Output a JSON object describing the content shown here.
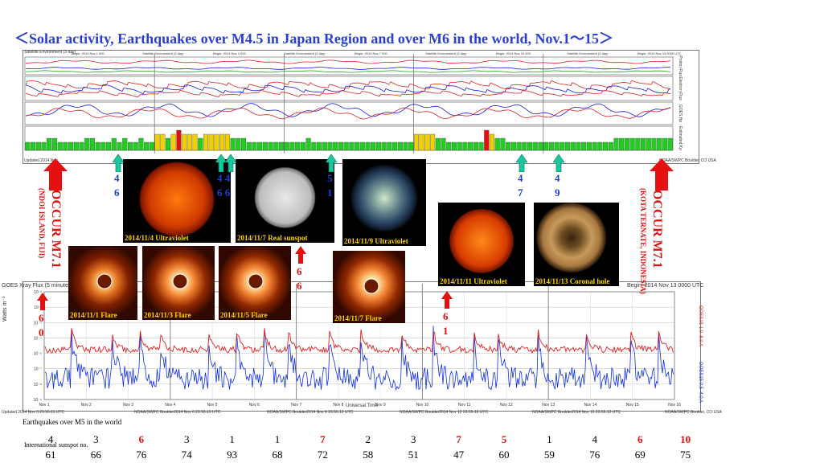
{
  "title": "＜Solar activity, Earthquakes over M4.5 in Japan Region and over M6 in the world, Nov.1～15＞",
  "top_panel": {
    "header_left": "Satellite Environment (3 day)",
    "header_items": [
      "Begin: 2014 Nov 1 000",
      "Satellite Environment (3 day)",
      "Begin: 2014 Nov 4 000",
      "Satellite Environment (3 day)",
      "Begin: 2014 Nov 7 000",
      "Satellite Environment (3 day)",
      "Begin: 2014 Nov 10 000",
      "Satellite Environment (3 day)",
      "Begin: 2014 Nov 13 0000 UTC"
    ],
    "right_labels": [
      "Proton Flux",
      "Electron Flux",
      "GOES Hp",
      "Estimated Kp"
    ],
    "footer_left": "Updated 2014 Nov",
    "footer_right": "NOAA/SWPC Boulder, CO USA"
  },
  "photos": [
    {
      "caption": "2014/11/4 Ultraviolet"
    },
    {
      "caption": "2014/11/7 Real sunspot"
    },
    {
      "caption": "2014/11/9 Ultraviolet"
    },
    {
      "caption": "2014/11/11 Ultraviolet"
    },
    {
      "caption": "2014/11/13 Coronal hole"
    },
    {
      "caption": "2014/11/1 Flare"
    },
    {
      "caption": "2014/11/3 Flare"
    },
    {
      "caption": "2014/11/5 Flare"
    },
    {
      "caption": "2014/11/7 Flare"
    }
  ],
  "japan_quakes": [
    {
      "top": "4",
      "bottom": "6"
    },
    {
      "top": "4 4",
      "bottom": "6 6"
    },
    {
      "top": "5",
      "bottom": "1"
    },
    {
      "top": "4",
      "bottom": "7"
    },
    {
      "top": "4",
      "bottom": "9"
    }
  ],
  "world_quakes": [
    {
      "top": "6",
      "bottom": "0"
    },
    {
      "top": "6",
      "bottom": "6"
    },
    {
      "top": "6",
      "bottom": "1"
    }
  ],
  "occur_left": {
    "title": "OCCUR M7.1",
    "place": "(NDOI ISLAND, FIJI)"
  },
  "occur_right": {
    "title": "OCCUR M7.1",
    "place": "(KOTA TERNATE, INDONESIA)"
  },
  "xray": {
    "header": "GOES Xray Flux (5 minute data)",
    "header_right": "Begin: 2014 Nov 13 0000 UTC",
    "ylabel": "Watts m⁻²",
    "right_label_1": "GOES15 1.0–8.0 A",
    "right_label_2": "GOES15 0.5–4.0 A",
    "xlabel": "Universal Time",
    "x_ticks": [
      "Nov 1",
      "Nov 2",
      "Nov 3",
      "Nov 4",
      "Nov 5",
      "Nov 6",
      "Nov 7",
      "Nov 8",
      "Nov 9",
      "Nov 10",
      "Nov 11",
      "Nov 12",
      "Nov 13",
      "Nov 14",
      "Nov 15",
      "Nov 16"
    ],
    "y_ticks": [
      "10⁻²",
      "10⁻³",
      "10⁻⁴",
      "10⁻⁵",
      "10⁻⁶",
      "10⁻⁷",
      "10⁻⁸",
      "10⁻⁹"
    ],
    "footer": [
      "Updated 2014 Nov 3 23:55:11 UTC",
      "NOAA/SWPC Boulder2014 Nov 6 23:55:12 UTC",
      "NOAA/SWPC Boulder2014 Nov 9 23:55:12 UTC",
      "NOAA/SWPC Boulder2014 Nov 12 23:55:12 UTC",
      "NOAA/SWPC Boulder2014 Nov 15 23:55:12 UTC",
      "NOAA/SWPC Boulder, CO USA"
    ],
    "colors": {
      "long": "#e02020",
      "short": "#1030e0"
    }
  },
  "earthquakes_label": "Earthquakes over M5 in the world",
  "sunspot_label": "International sunspot no.",
  "earthquakes": [
    {
      "v": "4",
      "red": false
    },
    {
      "v": "3",
      "red": false
    },
    {
      "v": "6",
      "red": true
    },
    {
      "v": "3",
      "red": false
    },
    {
      "v": "1",
      "red": false
    },
    {
      "v": "1",
      "red": false
    },
    {
      "v": "7",
      "red": true
    },
    {
      "v": "2",
      "red": false
    },
    {
      "v": "3",
      "red": false
    },
    {
      "v": "7",
      "red": true
    },
    {
      "v": "5",
      "red": true
    },
    {
      "v": "1",
      "red": false
    },
    {
      "v": "4",
      "red": false
    },
    {
      "v": "6",
      "red": true
    },
    {
      "v": "10",
      "red": true
    }
  ],
  "sunspots": [
    "61",
    "66",
    "76",
    "74",
    "93",
    "68",
    "72",
    "58",
    "51",
    "47",
    "60",
    "59",
    "76",
    "69",
    "75"
  ]
}
